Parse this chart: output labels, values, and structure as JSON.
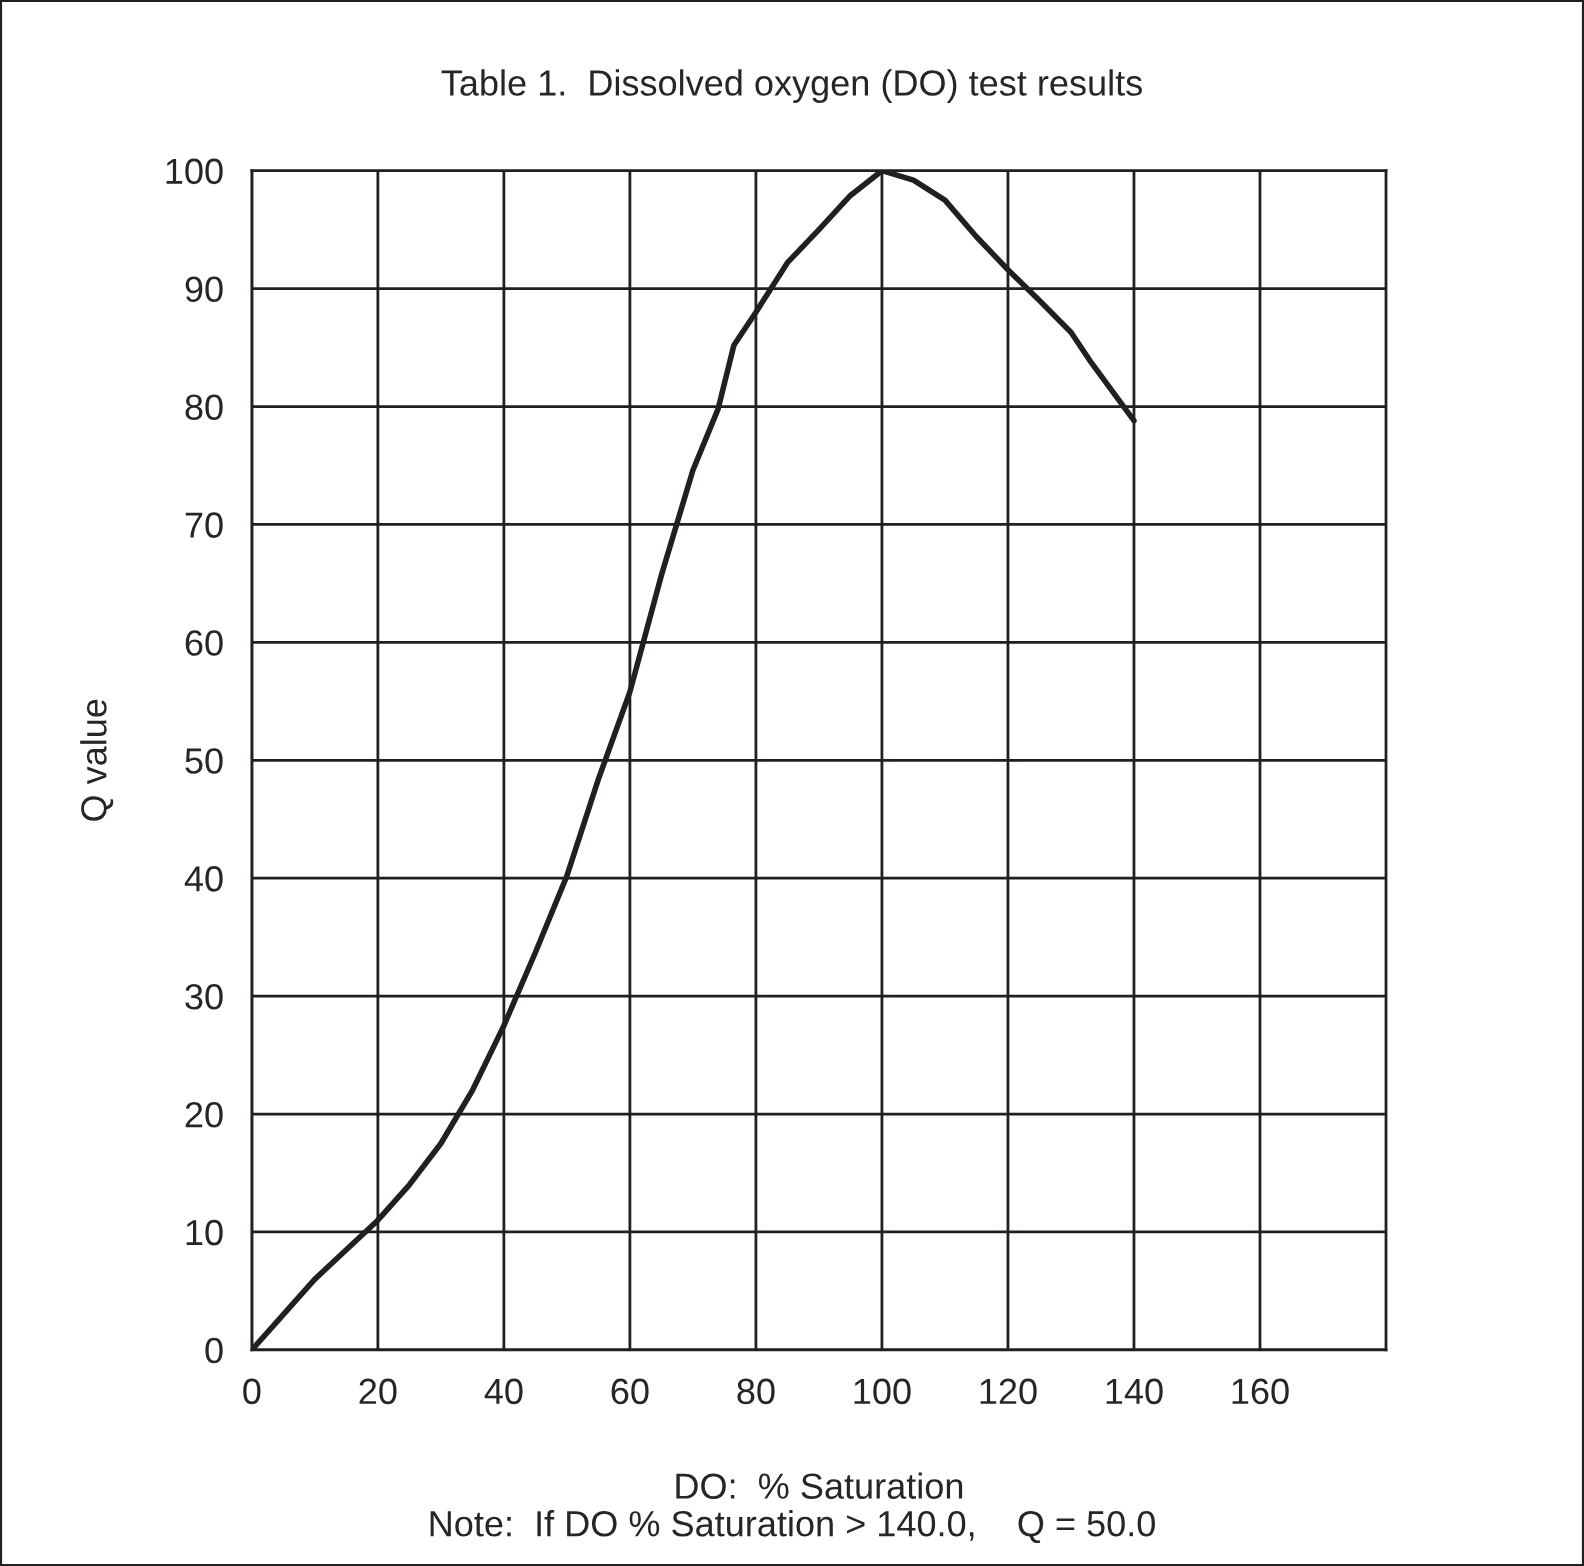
{
  "chart_data": {
    "type": "line",
    "title": "Table 1.  Dissolved oxygen (DO) test results",
    "xlabel": "DO:  % Saturation",
    "ylabel": "Q value",
    "annotations": [
      "Note:  If DO % Saturation > 140.0,    Q = 50.0"
    ],
    "series": [
      {
        "color": "#231f20",
        "x": [
          0,
          10,
          20,
          25,
          30,
          35,
          40,
          45,
          50,
          55,
          60,
          65,
          70,
          74,
          76.5,
          80,
          85,
          90,
          95,
          100,
          105,
          110,
          115,
          120,
          125,
          130,
          133,
          140
        ],
        "values": [
          0,
          6,
          11,
          14,
          17.5,
          22,
          27.5,
          33.7,
          40.2,
          48.4,
          55.8,
          65.7,
          74.6,
          79.8,
          85.2,
          88,
          92.2,
          95,
          97.9,
          100,
          99.2,
          97.5,
          94.4,
          91.6,
          89,
          86.3,
          83.9,
          78.8
        ]
      }
    ],
    "xlim": [
      0,
      180
    ],
    "xticks": [
      0,
      20,
      40,
      60,
      80,
      100,
      120,
      140,
      160
    ],
    "ylim": [
      0,
      100
    ],
    "yticks": [
      0,
      10,
      20,
      30,
      40,
      50,
      60,
      70,
      80,
      90,
      100
    ],
    "grid": true,
    "marker": "none",
    "line_style": "solid"
  }
}
